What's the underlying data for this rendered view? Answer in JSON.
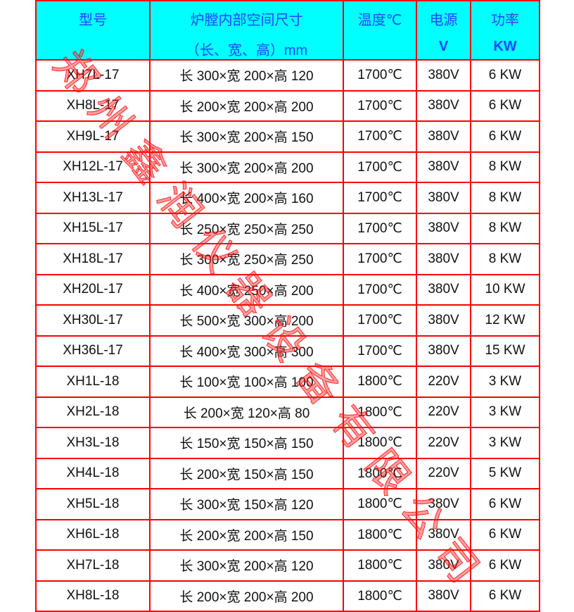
{
  "header": [
    {
      "line1": "型号",
      "line2": ""
    },
    {
      "line1": "炉膛内部空间尺寸",
      "line2": "（长、宽、高）mm"
    },
    {
      "line1": "温度℃",
      "line2": ""
    },
    {
      "line1": "电源",
      "line2": "V"
    },
    {
      "line1": "功率",
      "line2": "KW"
    }
  ],
  "rows": [
    [
      "XH7L-17",
      "长 300×宽 200×高 120",
      "1700℃",
      "380V",
      "6 KW"
    ],
    [
      "XH8L-17",
      "长 200×宽 200×高 200",
      "1700℃",
      "380V",
      "6 KW"
    ],
    [
      "XH9L-17",
      "长 300×宽 200×高 150",
      "1700℃",
      "380V",
      "6 KW"
    ],
    [
      "XH12L-17",
      "长 300×宽 200×高 200",
      "1700℃",
      "380V",
      "8 KW"
    ],
    [
      "XH13L-17",
      "长 400×宽 200×高 160",
      "1700℃",
      "380V",
      "8 KW"
    ],
    [
      "XH15L-17",
      "长 250×宽 250×高 250",
      "1700℃",
      "380V",
      "8 KW"
    ],
    [
      "XH18L-17",
      "长 300×宽 250×高 250",
      "1700℃",
      "380V",
      "8 KW"
    ],
    [
      "XH20L-17",
      "长 400×宽 250×高 200",
      "1700℃",
      "380V",
      "10 KW"
    ],
    [
      "XH30L-17",
      "长 500×宽 300×高 200",
      "1700℃",
      "380V",
      "12 KW"
    ],
    [
      "XH36L-17",
      "长 400×宽 300×高 300",
      "1700℃",
      "380V",
      "15 KW"
    ],
    [
      "XH1L-18",
      "长 100×宽 100×高 100",
      "1800℃",
      "220V",
      "3 KW"
    ],
    [
      "XH2L-18",
      "长 200×宽 120×高 80",
      "1800℃",
      "220V",
      "3 KW"
    ],
    [
      "XH3L-18",
      "长 150×宽 150×高 150",
      "1800℃",
      "220V",
      "3 KW"
    ],
    [
      "XH4L-18",
      "长 200×宽 150×高 150",
      "1800℃",
      "220V",
      "5 KW"
    ],
    [
      "XH5L-18",
      "长 300×宽 150×高 120",
      "1800℃",
      "380V",
      "6 KW"
    ],
    [
      "XH6L-18",
      "长 200×宽 200×高 150",
      "1800℃",
      "380V",
      "6 KW"
    ],
    [
      "XH7L-18",
      "长 300×宽 200×高 120",
      "1800℃",
      "380V",
      "6 KW"
    ],
    [
      "XH8L-18",
      "长 200×宽 200×高 200",
      "1800℃",
      "380V",
      "6 KW"
    ]
  ],
  "watermark": "郑州鑫润仪器设备有限公司",
  "colors": {
    "header_bg": "#00ffff",
    "header_text": "#2244ff",
    "border": "#ff0000",
    "watermark": "#ff3c3c"
  }
}
